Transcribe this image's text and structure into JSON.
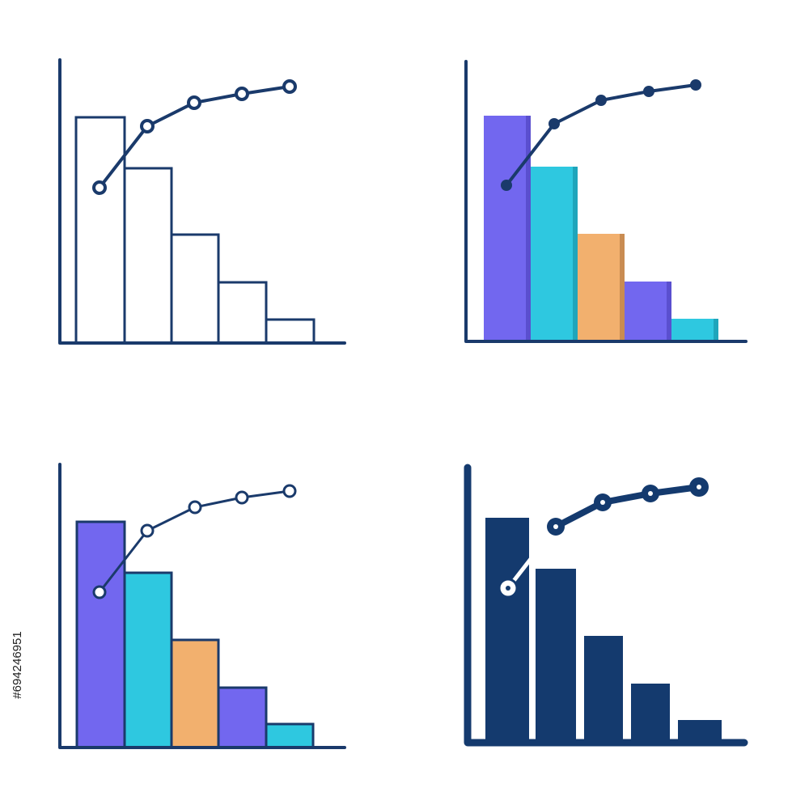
{
  "stock_id": "#694246951"
}
